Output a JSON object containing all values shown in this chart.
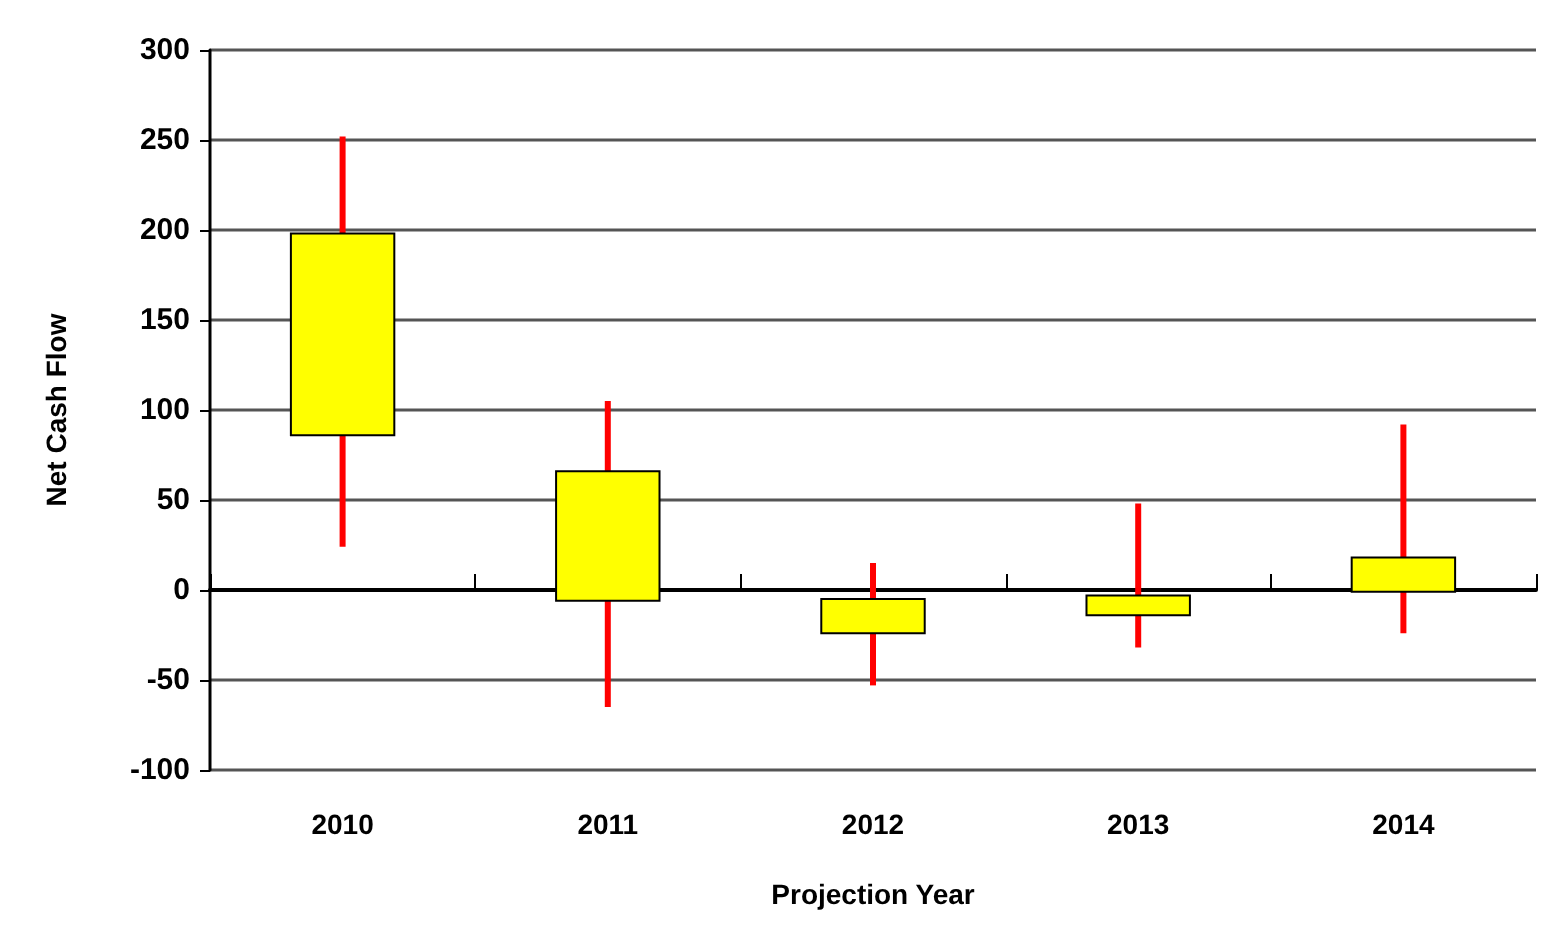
{
  "chart_data": {
    "type": "candlestick",
    "xlabel": "Projection Year",
    "ylabel": "Net Cash Flow",
    "categories": [
      "2010",
      "2011",
      "2012",
      "2013",
      "2014"
    ],
    "ohlc": [
      [
        86,
        252,
        24,
        198
      ],
      [
        -6,
        105,
        -65,
        66
      ],
      [
        -24,
        15,
        -53,
        -5
      ],
      [
        -14,
        48,
        -32,
        -3
      ],
      [
        -1,
        92,
        -24,
        18
      ]
    ],
    "color": "#ffff00",
    "ylim": [
      -100,
      300
    ],
    "yticks": [
      -100,
      -50,
      0,
      50,
      100,
      150,
      200,
      250,
      300
    ],
    "grid": "y"
  }
}
